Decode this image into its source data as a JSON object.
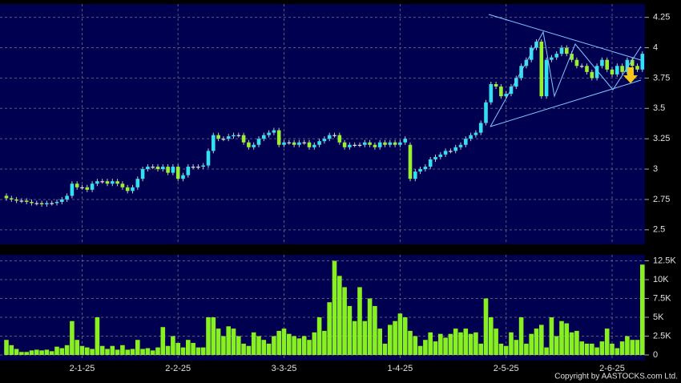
{
  "chart_data": [
    {
      "type": "candlestick",
      "up_color": "#33e0f0",
      "down_color": "#99f030",
      "flat_color": "#e8e8e8",
      "ylim": [
        2.38,
        4.36
      ],
      "yticks": [
        2.5,
        2.75,
        3,
        3.25,
        3.5,
        3.75,
        4,
        4.25
      ],
      "grid": true,
      "categories": [
        null,
        null,
        null,
        null,
        null,
        null,
        null,
        null,
        null,
        null,
        null,
        null,
        null,
        null,
        null,
        "2-1-25",
        null,
        null,
        null,
        null,
        null,
        null,
        null,
        null,
        null,
        null,
        null,
        null,
        null,
        null,
        null,
        null,
        null,
        null,
        "2-2-25",
        null,
        null,
        null,
        null,
        null,
        null,
        null,
        null,
        null,
        null,
        null,
        null,
        null,
        null,
        null,
        null,
        null,
        null,
        null,
        null,
        "3-3-25",
        null,
        null,
        null,
        null,
        null,
        null,
        null,
        null,
        null,
        null,
        null,
        null,
        null,
        null,
        null,
        null,
        null,
        null,
        null,
        null,
        null,
        null,
        "1-4-25",
        null,
        null,
        null,
        null,
        null,
        null,
        null,
        null,
        null,
        null,
        null,
        null,
        null,
        null,
        null,
        null,
        null,
        null,
        null,
        null,
        "2-5-25",
        null,
        null,
        null,
        null,
        null,
        null,
        null,
        null,
        null,
        null,
        null,
        null,
        null,
        null,
        null,
        null,
        null,
        null,
        null,
        null,
        "2-6-25",
        null,
        null,
        null,
        null,
        null,
        null
      ],
      "open": [
        2.78,
        2.76,
        2.75,
        2.74,
        2.74,
        2.73,
        2.72,
        2.72,
        2.71,
        2.72,
        2.72,
        2.73,
        2.75,
        2.78,
        2.88,
        2.85,
        2.85,
        2.83,
        2.88,
        2.9,
        2.9,
        2.88,
        2.9,
        2.88,
        2.85,
        2.82,
        2.85,
        2.92,
        3.0,
        3.02,
        3.02,
        3.0,
        3.02,
        2.97,
        3.02,
        2.92,
        2.95,
        3.02,
        3.02,
        3.02,
        3.03,
        3.15,
        3.28,
        3.25,
        3.25,
        3.27,
        3.28,
        3.28,
        3.22,
        3.18,
        3.2,
        3.25,
        3.28,
        3.3,
        3.32,
        3.2,
        3.22,
        3.22,
        3.2,
        3.22,
        3.22,
        3.18,
        3.2,
        3.23,
        3.25,
        3.28,
        3.28,
        3.22,
        3.18,
        3.2,
        3.2,
        3.2,
        3.22,
        3.2,
        3.18,
        3.22,
        3.2,
        3.22,
        3.2,
        3.22,
        3.2,
        2.92,
        2.98,
        3.0,
        3.02,
        3.08,
        3.1,
        3.12,
        3.15,
        3.15,
        3.18,
        3.2,
        3.25,
        3.28,
        3.3,
        3.38,
        3.55,
        3.7,
        3.68,
        3.6,
        3.62,
        3.68,
        3.75,
        3.85,
        3.9,
        4.0,
        4.05,
        3.6,
        3.9,
        3.92,
        3.95,
        4.0,
        3.95,
        3.9,
        3.85,
        3.85,
        3.8,
        3.75,
        3.85,
        3.9,
        3.82,
        3.78,
        3.85,
        3.8,
        3.9,
        3.85,
        3.82
      ],
      "high": [
        2.8,
        2.78,
        2.77,
        2.76,
        2.76,
        2.75,
        2.74,
        2.74,
        2.74,
        2.74,
        2.75,
        2.77,
        2.8,
        2.9,
        2.9,
        2.87,
        2.87,
        2.9,
        2.92,
        2.92,
        2.92,
        2.92,
        2.92,
        2.9,
        2.87,
        2.87,
        2.94,
        3.02,
        3.04,
        3.04,
        3.04,
        3.04,
        3.04,
        3.04,
        3.04,
        2.97,
        3.04,
        3.04,
        3.04,
        3.05,
        3.17,
        3.3,
        3.3,
        3.27,
        3.29,
        3.3,
        3.3,
        3.3,
        3.24,
        3.22,
        3.27,
        3.3,
        3.32,
        3.34,
        3.34,
        3.24,
        3.24,
        3.24,
        3.24,
        3.24,
        3.24,
        3.22,
        3.25,
        3.27,
        3.3,
        3.3,
        3.3,
        3.24,
        3.22,
        3.22,
        3.22,
        3.24,
        3.24,
        3.22,
        3.24,
        3.24,
        3.24,
        3.24,
        3.24,
        3.27,
        3.22,
        3.0,
        3.02,
        3.04,
        3.1,
        3.12,
        3.14,
        3.17,
        3.17,
        3.2,
        3.22,
        3.27,
        3.3,
        3.32,
        3.4,
        3.57,
        3.72,
        3.72,
        3.7,
        3.64,
        3.7,
        3.77,
        3.87,
        3.92,
        4.02,
        4.07,
        4.07,
        3.92,
        3.94,
        3.97,
        4.02,
        4.02,
        3.97,
        3.92,
        3.87,
        3.87,
        3.82,
        3.87,
        3.92,
        3.92,
        3.84,
        3.87,
        3.87,
        3.92,
        3.92,
        3.87,
        3.97
      ],
      "low": [
        2.74,
        2.73,
        2.72,
        2.72,
        2.71,
        2.7,
        2.7,
        2.69,
        2.69,
        2.7,
        2.7,
        2.71,
        2.73,
        2.76,
        2.83,
        2.83,
        2.81,
        2.81,
        2.86,
        2.88,
        2.86,
        2.86,
        2.86,
        2.83,
        2.8,
        2.8,
        2.83,
        2.9,
        2.98,
        3.0,
        2.98,
        2.98,
        2.95,
        2.95,
        2.9,
        2.9,
        2.93,
        3.0,
        3.0,
        3.0,
        3.01,
        3.13,
        3.23,
        3.23,
        3.23,
        3.25,
        3.26,
        3.2,
        3.16,
        3.16,
        3.18,
        3.23,
        3.26,
        3.28,
        3.18,
        3.18,
        3.2,
        3.18,
        3.18,
        3.2,
        3.16,
        3.16,
        3.18,
        3.21,
        3.23,
        3.26,
        3.2,
        3.16,
        3.16,
        3.18,
        3.18,
        3.18,
        3.18,
        3.16,
        3.16,
        3.18,
        3.18,
        3.18,
        3.18,
        3.2,
        2.9,
        2.9,
        2.96,
        2.98,
        3.0,
        3.06,
        3.08,
        3.1,
        3.13,
        3.13,
        3.16,
        3.18,
        3.23,
        3.26,
        3.28,
        3.36,
        3.53,
        3.66,
        3.58,
        3.58,
        3.6,
        3.66,
        3.73,
        3.83,
        3.88,
        3.98,
        3.58,
        3.58,
        3.88,
        3.9,
        3.93,
        3.93,
        3.88,
        3.83,
        3.83,
        3.78,
        3.73,
        3.73,
        3.83,
        3.8,
        3.76,
        3.76,
        3.78,
        3.78,
        3.83,
        3.8,
        3.8
      ],
      "close": [
        2.76,
        2.75,
        2.74,
        2.74,
        2.73,
        2.72,
        2.72,
        2.71,
        2.72,
        2.72,
        2.73,
        2.75,
        2.78,
        2.88,
        2.85,
        2.85,
        2.83,
        2.88,
        2.9,
        2.9,
        2.88,
        2.9,
        2.88,
        2.85,
        2.82,
        2.85,
        2.92,
        3.0,
        3.02,
        3.02,
        3.0,
        3.02,
        2.97,
        3.02,
        2.92,
        2.95,
        3.02,
        3.02,
        3.02,
        3.03,
        3.15,
        3.28,
        3.25,
        3.25,
        3.27,
        3.28,
        3.28,
        3.22,
        3.18,
        3.2,
        3.25,
        3.28,
        3.3,
        3.32,
        3.2,
        3.22,
        3.22,
        3.2,
        3.22,
        3.22,
        3.18,
        3.2,
        3.23,
        3.25,
        3.28,
        3.28,
        3.22,
        3.18,
        3.2,
        3.2,
        3.2,
        3.22,
        3.2,
        3.18,
        3.22,
        3.2,
        3.22,
        3.2,
        3.22,
        3.25,
        2.92,
        2.98,
        3.0,
        3.02,
        3.08,
        3.1,
        3.12,
        3.15,
        3.15,
        3.18,
        3.2,
        3.25,
        3.28,
        3.3,
        3.38,
        3.55,
        3.7,
        3.68,
        3.6,
        3.62,
        3.68,
        3.75,
        3.85,
        3.9,
        4.0,
        4.05,
        3.6,
        3.9,
        3.92,
        3.95,
        4.0,
        3.95,
        3.9,
        3.85,
        3.85,
        3.8,
        3.75,
        3.85,
        3.9,
        3.82,
        3.78,
        3.85,
        3.8,
        3.9,
        3.85,
        3.82,
        3.95
      ]
    },
    {
      "type": "bar",
      "color": "#88f020",
      "ylim": [
        0,
        13300
      ],
      "yticks": [
        0,
        {
          "value": 2500,
          "label": "2.5K"
        },
        {
          "value": 5000,
          "label": "5K"
        },
        {
          "value": 7500,
          "label": "7.5K"
        },
        {
          "value": 10000,
          "label": "10K"
        },
        {
          "value": 12500,
          "label": "12.5K"
        }
      ],
      "grid": true,
      "values": [
        2000,
        1300,
        800,
        400,
        400,
        600,
        700,
        600,
        700,
        500,
        1100,
        900,
        1300,
        4500,
        2000,
        1200,
        1000,
        800,
        5000,
        1200,
        800,
        1200,
        700,
        1300,
        700,
        800,
        2000,
        800,
        900,
        600,
        1000,
        3700,
        1200,
        2500,
        1600,
        1000,
        2000,
        1600,
        1000,
        1000,
        5000,
        5000,
        3500,
        2500,
        3800,
        3500,
        2500,
        1500,
        1200,
        3000,
        2500,
        2000,
        1500,
        2500,
        3200,
        3500,
        2800,
        2500,
        2200,
        2500,
        2000,
        3000,
        5000,
        3200,
        7000,
        12500,
        10500,
        9000,
        6500,
        4500,
        9000,
        4500,
        7500,
        6500,
        3500,
        1500,
        4000,
        4500,
        5500,
        5000,
        3200,
        2500,
        1200,
        2000,
        3000,
        1800,
        2800,
        2300,
        2800,
        3500,
        3000,
        3500,
        2800,
        3000,
        1500,
        7500,
        5000,
        3500,
        1500,
        1200,
        3000,
        2000,
        5000,
        1500,
        2800,
        3500,
        4000,
        1000,
        5000,
        2500,
        4500,
        4200,
        3000,
        3200,
        1800,
        1500,
        1500,
        1000,
        1800,
        3500,
        1500,
        900,
        1800,
        2500,
        2000,
        2000,
        12000
      ]
    }
  ],
  "footer": "Copyright by AASTOCKS.com Ltd."
}
